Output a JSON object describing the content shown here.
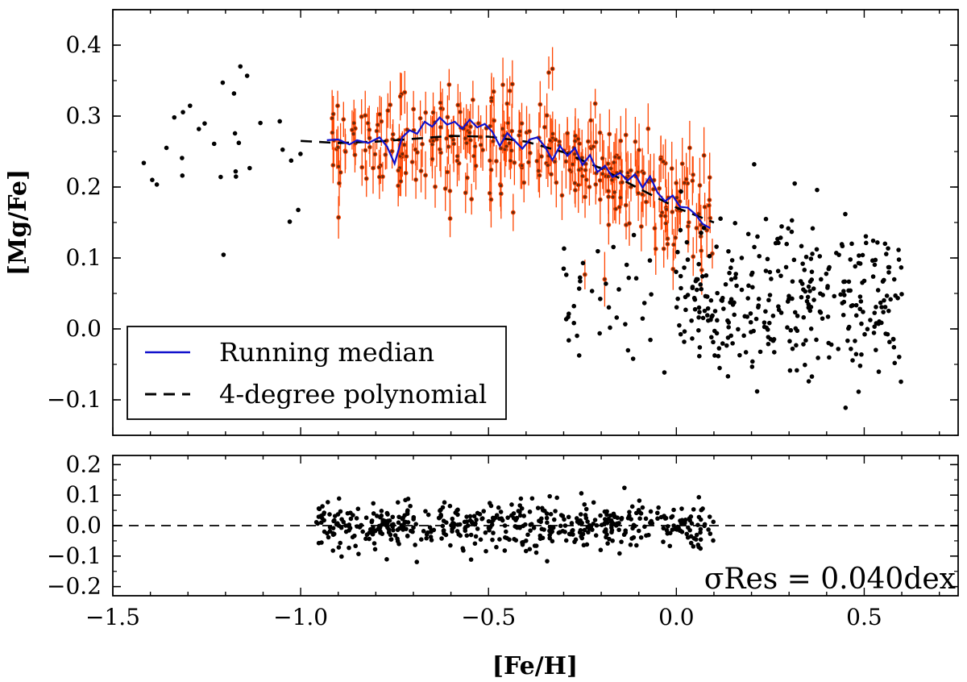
{
  "chart_data": [
    {
      "type": "scatter",
      "panel": "main",
      "ylabel": "[Mg/Fe]",
      "xlim": [
        -1.5,
        0.75
      ],
      "ylim": [
        -0.15,
        0.45
      ],
      "yticks": [
        {
          "v": 0.4,
          "label": "0.4"
        },
        {
          "v": 0.3,
          "label": "0.3"
        },
        {
          "v": 0.2,
          "label": "0.2"
        },
        {
          "v": 0.1,
          "label": "0.1"
        },
        {
          "v": 0.0,
          "label": "0.0"
        },
        {
          "v": -0.1,
          "label": "−0.1"
        }
      ],
      "series": [
        {
          "name": "Sample stars",
          "color": "#000000"
        },
        {
          "name": "Stars with uncertainties",
          "color": "#ff4500"
        },
        {
          "name": "Running median",
          "color": "#1010cc"
        },
        {
          "name": "4-degree polynomial",
          "color": "#000000"
        }
      ],
      "polynomial_fit": {
        "x": [
          -1.0,
          -0.9,
          -0.8,
          -0.7,
          -0.6,
          -0.5,
          -0.4,
          -0.3,
          -0.2,
          -0.1,
          0.0,
          0.1
        ],
        "y": [
          0.265,
          0.262,
          0.264,
          0.268,
          0.272,
          0.271,
          0.264,
          0.249,
          0.226,
          0.198,
          0.171,
          0.15
        ]
      },
      "running_median": {
        "x": [
          -0.93,
          -0.9,
          -0.87,
          -0.85,
          -0.82,
          -0.79,
          -0.77,
          -0.75,
          -0.73,
          -0.71,
          -0.69,
          -0.67,
          -0.65,
          -0.63,
          -0.61,
          -0.59,
          -0.57,
          -0.55,
          -0.53,
          -0.51,
          -0.49,
          -0.47,
          -0.45,
          -0.43,
          -0.41,
          -0.39,
          -0.37,
          -0.35,
          -0.33,
          -0.31,
          -0.29,
          -0.27,
          -0.25,
          -0.23,
          -0.21,
          -0.19,
          -0.17,
          -0.15,
          -0.13,
          -0.11,
          -0.09,
          -0.07,
          -0.05,
          -0.03,
          -0.01,
          0.01,
          0.03,
          0.05,
          0.07,
          0.09
        ],
        "y": [
          0.266,
          0.267,
          0.26,
          0.266,
          0.262,
          0.27,
          0.257,
          0.233,
          0.27,
          0.28,
          0.275,
          0.292,
          0.285,
          0.298,
          0.288,
          0.292,
          0.282,
          0.295,
          0.284,
          0.289,
          0.278,
          0.258,
          0.276,
          0.265,
          0.254,
          0.267,
          0.27,
          0.257,
          0.238,
          0.258,
          0.244,
          0.255,
          0.231,
          0.245,
          0.221,
          0.23,
          0.214,
          0.22,
          0.209,
          0.218,
          0.199,
          0.215,
          0.192,
          0.18,
          0.188,
          0.172,
          0.171,
          0.162,
          0.148,
          0.142
        ]
      },
      "legend": {
        "location": "lower-left",
        "entries": [
          "Running median",
          "4-degree polynomial"
        ]
      }
    },
    {
      "type": "scatter",
      "panel": "residuals",
      "xlabel": "[Fe/H]",
      "xlim": [
        -1.5,
        0.75
      ],
      "ylim": [
        -0.23,
        0.23
      ],
      "xticks": [
        {
          "v": -1.5,
          "label": "−1.5"
        },
        {
          "v": -1.0,
          "label": "−1.0"
        },
        {
          "v": -0.5,
          "label": "−0.5"
        },
        {
          "v": 0.0,
          "label": "0.0"
        },
        {
          "v": 0.5,
          "label": "0.5"
        }
      ],
      "yticks": [
        {
          "v": 0.2,
          "label": "0.2"
        },
        {
          "v": 0.1,
          "label": "0.1"
        },
        {
          "v": 0.0,
          "label": "0.0"
        },
        {
          "v": -0.1,
          "label": "−0.1"
        },
        {
          "v": -0.2,
          "label": "−0.2"
        }
      ],
      "reference_line": 0.0,
      "annotation": "σRes = 0.040dex",
      "residual_scatter_dex": 0.04,
      "fit_range": [
        -1.0,
        0.1
      ]
    }
  ]
}
